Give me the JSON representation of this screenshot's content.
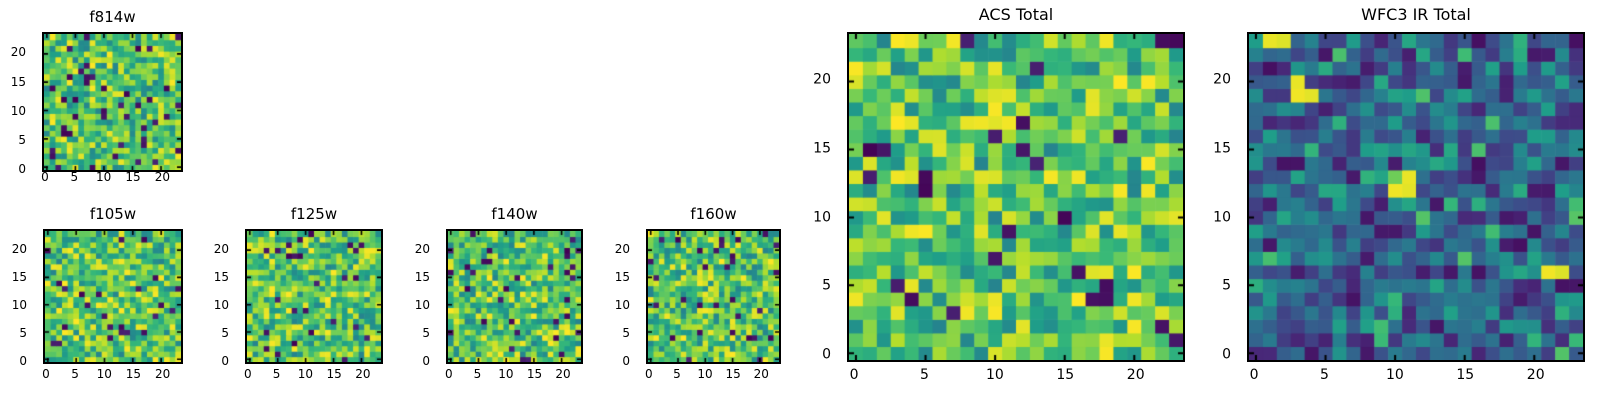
{
  "figure": {
    "background": "#ffffff",
    "foreground": "#000000",
    "description": "Grid of astronomical filter image stamps rendered as viridis heatmaps"
  },
  "colormap": {
    "name": "viridis",
    "low_color": "#440154",
    "mid_color": "#21918c",
    "high_color": "#fde725"
  },
  "chart_data": [
    {
      "type": "heatmap",
      "title": "f814w",
      "grid_size": [
        24,
        24
      ],
      "xlim": [
        -0.5,
        23.5
      ],
      "ylim": [
        -0.5,
        23.5
      ],
      "xticks": [
        0,
        5,
        10,
        15,
        20
      ],
      "yticks": [
        0,
        5,
        10,
        15,
        20
      ],
      "xlabel": "",
      "ylabel": "",
      "grid": false,
      "legend": false,
      "colormap": "viridis",
      "noise_seed": 8141,
      "value_bands": [
        {
          "frac": 0.045,
          "range": [
            0.0,
            0.1
          ]
        },
        {
          "frac": 0.25,
          "range": [
            0.45,
            0.62
          ]
        },
        {
          "frac": 0.54,
          "range": [
            0.62,
            0.88
          ]
        },
        {
          "frac": 0.165,
          "range": [
            0.88,
            1.0
          ]
        }
      ],
      "spots": [
        {
          "x": 23,
          "y": 23,
          "v": 0.05
        },
        {
          "x": 7,
          "y": 16,
          "v": 0.04
        },
        {
          "x": 10,
          "y": 9,
          "v": 0.05
        },
        {
          "x": 4,
          "y": 4,
          "v": 0.95
        },
        {
          "x": 17,
          "y": 4,
          "v": 0.05
        }
      ]
    },
    {
      "type": "heatmap",
      "title": "f105w",
      "grid_size": [
        24,
        24
      ],
      "xlim": [
        -0.5,
        23.5
      ],
      "ylim": [
        -0.5,
        23.5
      ],
      "xticks": [
        0,
        5,
        10,
        15,
        20
      ],
      "yticks": [
        0,
        5,
        10,
        15,
        20
      ],
      "xlabel": "",
      "ylabel": "",
      "grid": false,
      "legend": false,
      "colormap": "viridis",
      "noise_seed": 1051,
      "value_bands": [
        {
          "frac": 0.045,
          "range": [
            0.0,
            0.1
          ]
        },
        {
          "frac": 0.25,
          "range": [
            0.45,
            0.62
          ]
        },
        {
          "frac": 0.54,
          "range": [
            0.62,
            0.88
          ]
        },
        {
          "frac": 0.165,
          "range": [
            0.88,
            1.0
          ]
        }
      ],
      "spots": [
        {
          "x": 10,
          "y": 8,
          "v": 0.05
        },
        {
          "x": 17,
          "y": 5,
          "v": 0.04
        },
        {
          "x": 7,
          "y": 3,
          "v": 0.97
        },
        {
          "x": 23,
          "y": 13,
          "v": 0.05
        }
      ]
    },
    {
      "type": "heatmap",
      "title": "f125w",
      "grid_size": [
        24,
        24
      ],
      "xlim": [
        -0.5,
        23.5
      ],
      "ylim": [
        -0.5,
        23.5
      ],
      "xticks": [
        0,
        5,
        10,
        15,
        20
      ],
      "yticks": [
        0,
        5,
        10,
        15,
        20
      ],
      "xlabel": "",
      "ylabel": "",
      "grid": false,
      "legend": false,
      "colormap": "viridis",
      "noise_seed": 1251,
      "value_bands": [
        {
          "frac": 0.045,
          "range": [
            0.0,
            0.1
          ]
        },
        {
          "frac": 0.25,
          "range": [
            0.45,
            0.62
          ]
        },
        {
          "frac": 0.54,
          "range": [
            0.62,
            0.88
          ]
        },
        {
          "frac": 0.165,
          "range": [
            0.88,
            1.0
          ]
        }
      ],
      "spots": [
        {
          "x": 3,
          "y": 2,
          "v": 0.03
        },
        {
          "x": 3,
          "y": 5,
          "v": 0.05
        },
        {
          "x": 10,
          "y": 9,
          "v": 0.05
        },
        {
          "x": 7,
          "y": 21,
          "v": 0.05
        },
        {
          "x": 18,
          "y": 21,
          "v": 0.04
        }
      ]
    },
    {
      "type": "heatmap",
      "title": "f140w",
      "grid_size": [
        24,
        24
      ],
      "xlim": [
        -0.5,
        23.5
      ],
      "ylim": [
        -0.5,
        23.5
      ],
      "xticks": [
        0,
        5,
        10,
        15,
        20
      ],
      "yticks": [
        0,
        5,
        10,
        15,
        20
      ],
      "xlabel": "",
      "ylabel": "",
      "grid": false,
      "legend": false,
      "colormap": "viridis",
      "noise_seed": 1401,
      "value_bands": [
        {
          "frac": 0.045,
          "range": [
            0.0,
            0.1
          ]
        },
        {
          "frac": 0.25,
          "range": [
            0.45,
            0.62
          ]
        },
        {
          "frac": 0.54,
          "range": [
            0.62,
            0.88
          ]
        },
        {
          "frac": 0.165,
          "range": [
            0.88,
            1.0
          ]
        }
      ],
      "spots": [
        {
          "x": 12,
          "y": 15,
          "v": 0.04
        },
        {
          "x": 0,
          "y": 5,
          "v": 0.04
        },
        {
          "x": 20,
          "y": 1,
          "v": 0.04
        },
        {
          "x": 11,
          "y": 2,
          "v": 0.1
        }
      ]
    },
    {
      "type": "heatmap",
      "title": "f160w",
      "grid_size": [
        24,
        24
      ],
      "xlim": [
        -0.5,
        23.5
      ],
      "ylim": [
        -0.5,
        23.5
      ],
      "xticks": [
        0,
        5,
        10,
        15,
        20
      ],
      "yticks": [
        0,
        5,
        10,
        15,
        20
      ],
      "xlabel": "",
      "ylabel": "",
      "grid": false,
      "legend": false,
      "colormap": "viridis",
      "noise_seed": 1601,
      "value_bands": [
        {
          "frac": 0.045,
          "range": [
            0.0,
            0.1
          ]
        },
        {
          "frac": 0.25,
          "range": [
            0.45,
            0.62
          ]
        },
        {
          "frac": 0.54,
          "range": [
            0.62,
            0.88
          ]
        },
        {
          "frac": 0.165,
          "range": [
            0.88,
            1.0
          ]
        }
      ],
      "spots": [
        {
          "x": 6,
          "y": 11,
          "v": 0.05
        },
        {
          "x": 9,
          "y": 10,
          "v": 0.03
        },
        {
          "x": 12,
          "y": 10,
          "v": 0.05
        },
        {
          "x": 9,
          "y": 5,
          "v": 0.03
        },
        {
          "x": 16,
          "y": 8,
          "v": 0.06
        },
        {
          "x": 23,
          "y": 5,
          "v": 0.95
        }
      ]
    },
    {
      "type": "heatmap",
      "title": "ACS Total",
      "grid_size": [
        24,
        24
      ],
      "xlim": [
        -0.5,
        23.5
      ],
      "ylim": [
        -0.5,
        23.5
      ],
      "xticks": [
        0,
        5,
        10,
        15,
        20
      ],
      "yticks": [
        0,
        5,
        10,
        15,
        20
      ],
      "xlabel": "",
      "ylabel": "",
      "grid": false,
      "legend": false,
      "colormap": "viridis",
      "noise_seed": 555,
      "value_bands": [
        {
          "frac": 0.04,
          "range": [
            0.0,
            0.1
          ]
        },
        {
          "frac": 0.25,
          "range": [
            0.45,
            0.62
          ]
        },
        {
          "frac": 0.54,
          "range": [
            0.62,
            0.88
          ]
        },
        {
          "frac": 0.17,
          "range": [
            0.88,
            1.0
          ]
        }
      ],
      "spots": [
        {
          "x": 22,
          "y": 23,
          "v": 0.03
        },
        {
          "x": 23,
          "y": 23,
          "v": 0.02
        },
        {
          "x": 12,
          "y": 17,
          "v": 0.04
        },
        {
          "x": 10,
          "y": 16,
          "v": 0.08
        },
        {
          "x": 2,
          "y": 15,
          "v": 0.06
        },
        {
          "x": 11,
          "y": 9,
          "v": 0.05
        },
        {
          "x": 4,
          "y": 4,
          "v": 0.03
        },
        {
          "x": 18,
          "y": 4,
          "v": 0.04
        },
        {
          "x": 16,
          "y": 6,
          "v": 0.05
        },
        {
          "x": 8,
          "y": 3,
          "v": 0.98
        },
        {
          "x": 8,
          "y": 4,
          "v": 0.93
        },
        {
          "x": 12,
          "y": 2,
          "v": 0.96
        }
      ]
    },
    {
      "type": "heatmap",
      "title": "WFC3 IR Total",
      "grid_size": [
        24,
        24
      ],
      "xlim": [
        -0.5,
        23.5
      ],
      "ylim": [
        -0.5,
        23.5
      ],
      "xticks": [
        0,
        5,
        10,
        15,
        20
      ],
      "yticks": [
        0,
        5,
        10,
        15,
        20
      ],
      "xlabel": "",
      "ylabel": "",
      "grid": false,
      "legend": false,
      "colormap": "viridis",
      "noise_seed": 333,
      "value_bands": [
        {
          "frac": 0.17,
          "range": [
            0.04,
            0.16
          ]
        },
        {
          "frac": 0.6,
          "range": [
            0.16,
            0.44
          ]
        },
        {
          "frac": 0.17,
          "range": [
            0.44,
            0.6
          ]
        },
        {
          "frac": 0.06,
          "range": [
            0.6,
            0.74
          ]
        }
      ],
      "spots": [
        {
          "x": 0,
          "y": 23,
          "v": 0.55
        },
        {
          "x": 1,
          "y": 23,
          "v": 0.97
        },
        {
          "x": 2,
          "y": 23,
          "v": 0.95
        },
        {
          "x": 3,
          "y": 20,
          "v": 0.97
        },
        {
          "x": 3,
          "y": 19,
          "v": 0.98
        },
        {
          "x": 4,
          "y": 19,
          "v": 0.96
        },
        {
          "x": 10,
          "y": 13,
          "v": 0.78
        },
        {
          "x": 11,
          "y": 13,
          "v": 0.97
        },
        {
          "x": 10,
          "y": 12,
          "v": 0.98
        },
        {
          "x": 11,
          "y": 12,
          "v": 0.96
        },
        {
          "x": 21,
          "y": 6,
          "v": 0.98
        },
        {
          "x": 22,
          "y": 6,
          "v": 0.95
        },
        {
          "x": 23,
          "y": 5,
          "v": 0.06
        },
        {
          "x": 16,
          "y": 6,
          "v": 0.05
        },
        {
          "x": 13,
          "y": 5,
          "v": 0.58
        },
        {
          "x": 8,
          "y": 3,
          "v": 0.52
        }
      ]
    }
  ]
}
